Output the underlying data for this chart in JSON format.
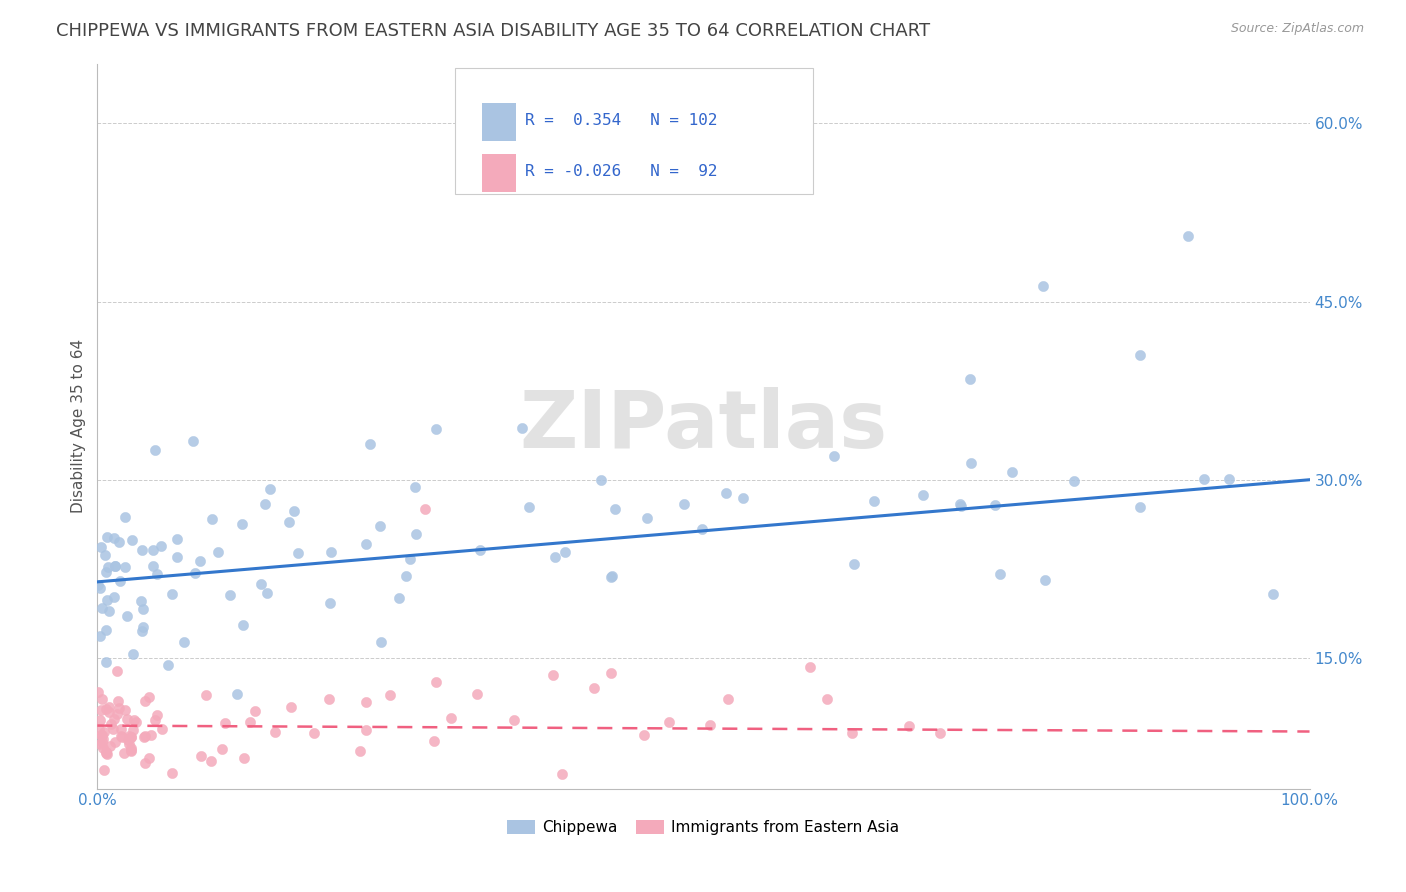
{
  "title": "CHIPPEWA VS IMMIGRANTS FROM EASTERN ASIA DISABILITY AGE 35 TO 64 CORRELATION CHART",
  "source": "Source: ZipAtlas.com",
  "ylabel": "Disability Age 35 to 64",
  "xlim": [
    0.0,
    1.0
  ],
  "ylim": [
    0.04,
    0.65
  ],
  "xtick_positions": [
    0.0,
    0.1,
    0.2,
    0.3,
    0.4,
    0.5,
    0.6,
    0.7,
    0.8,
    0.9,
    1.0
  ],
  "xticklabels": [
    "0.0%",
    "",
    "",
    "",
    "",
    "",
    "",
    "",
    "",
    "",
    "100.0%"
  ],
  "ytick_positions": [
    0.15,
    0.3,
    0.45,
    0.6
  ],
  "yticklabels": [
    "15.0%",
    "30.0%",
    "45.0%",
    "60.0%"
  ],
  "series1_color": "#aac4e2",
  "series2_color": "#f4aabb",
  "line1_color": "#3377cc",
  "line2_color": "#f06080",
  "R1": 0.354,
  "N1": 102,
  "R2": -0.026,
  "N2": 92,
  "background_color": "#ffffff",
  "grid_color": "#cccccc",
  "title_color": "#444444",
  "title_fontsize": 13,
  "legend1_label": "Chippewa",
  "legend2_label": "Immigrants from Eastern Asia",
  "line1_start_y": 0.214,
  "line1_end_y": 0.3,
  "line2_start_y": 0.093,
  "line2_end_y": 0.088
}
